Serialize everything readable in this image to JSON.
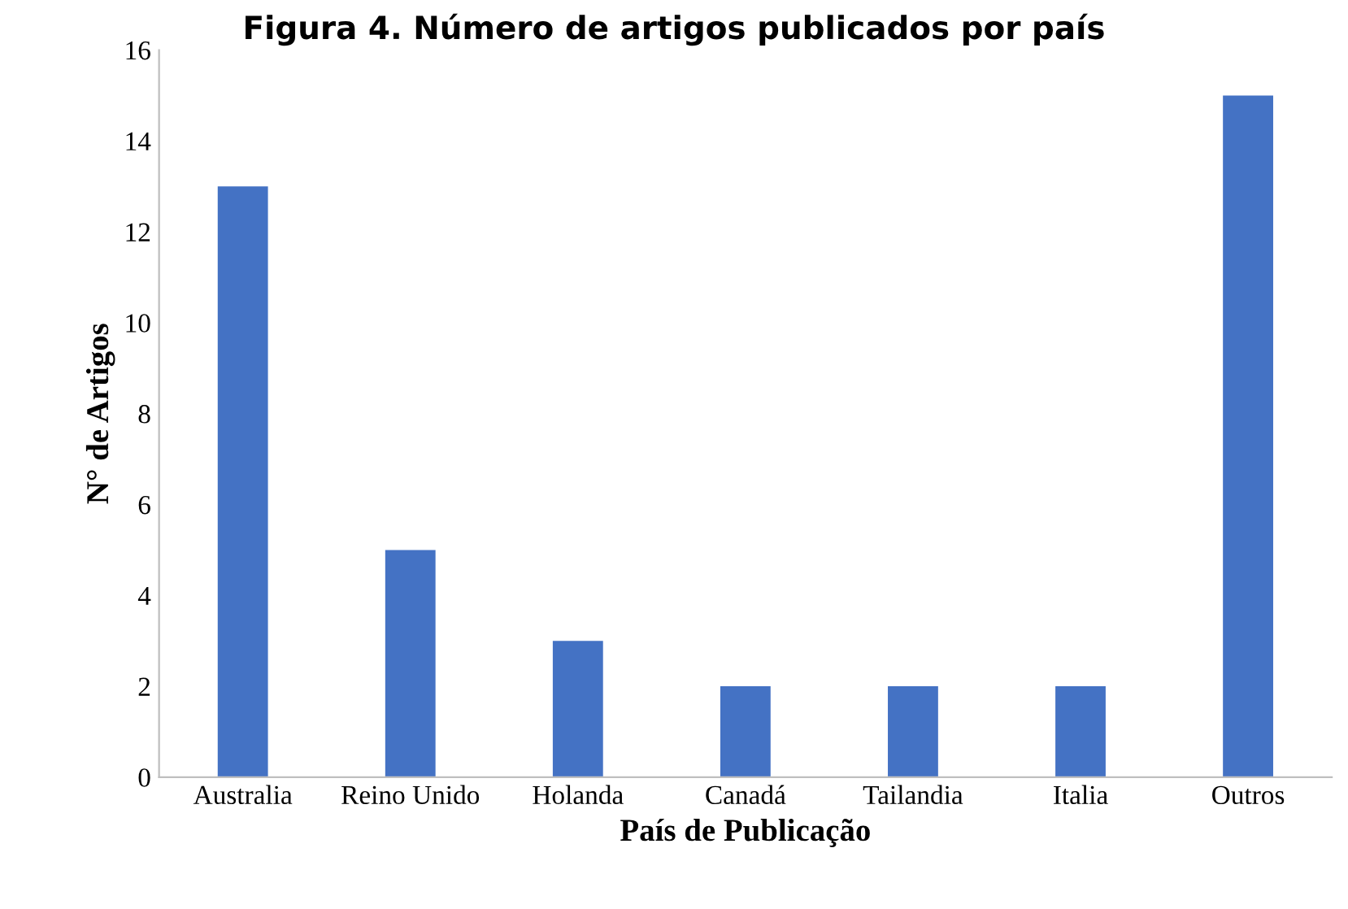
{
  "chart_data": {
    "type": "bar",
    "title": "Figura 4. Número de artigos publicados por país",
    "xlabel": "País de Publicação",
    "ylabel": "N° de Artigos",
    "categories": [
      "Australia",
      "Reino Unido",
      "Holanda",
      "Canadá",
      "Tailandia",
      "Italia",
      "Outros"
    ],
    "values": [
      13,
      5,
      3,
      2,
      2,
      2,
      15
    ],
    "color": "#4472c4",
    "ylim": [
      0,
      16
    ],
    "yticks": [
      0,
      2,
      4,
      6,
      8,
      10,
      12,
      14,
      16
    ],
    "grid": false
  }
}
